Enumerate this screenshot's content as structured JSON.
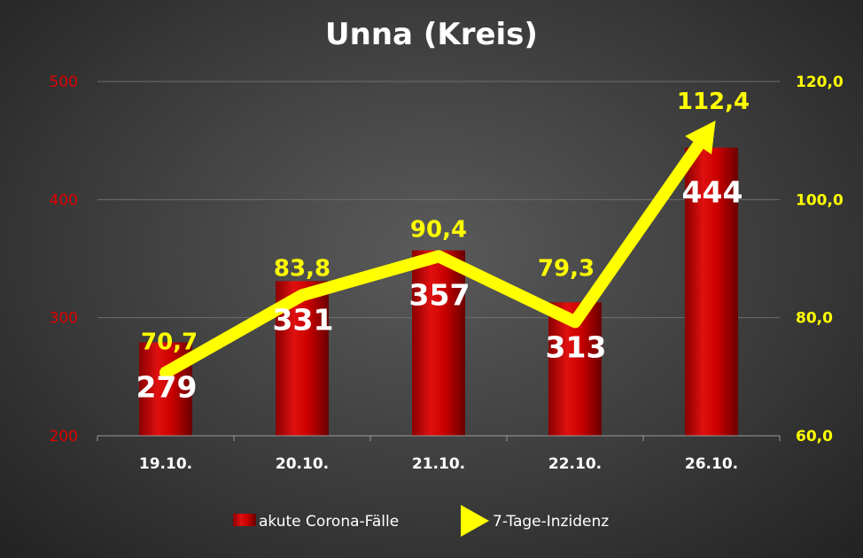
{
  "chart_data": {
    "type": "bar",
    "title": "Unna (Kreis)",
    "categories": [
      "19.10.",
      "20.10.",
      "21.10.",
      "22.10.",
      "26.10."
    ],
    "series": [
      {
        "name": "akute Corona-Fälle",
        "kind": "bar",
        "axis": "left",
        "values": [
          279,
          331,
          357,
          313,
          444
        ],
        "labels": [
          "279",
          "331",
          "357",
          "313",
          "444"
        ],
        "color": "#cc0000"
      },
      {
        "name": "7-Tage-Inzidenz",
        "kind": "line",
        "axis": "right",
        "values": [
          70.7,
          83.8,
          90.4,
          79.3,
          112.4
        ],
        "labels": [
          "70,7",
          "83,8",
          "90,4",
          "79,3",
          "112,4"
        ],
        "color": "#ffff00"
      }
    ],
    "y_left": {
      "lim": [
        200,
        500
      ],
      "ticks": [
        "200",
        "300",
        "400",
        "500"
      ],
      "color": "#e00000"
    },
    "y_right": {
      "lim": [
        60,
        120
      ],
      "ticks": [
        "60,0",
        "80,0",
        "100,0",
        "120,0"
      ],
      "color": "#ffff00"
    },
    "grid": true,
    "legend": "bottom"
  }
}
